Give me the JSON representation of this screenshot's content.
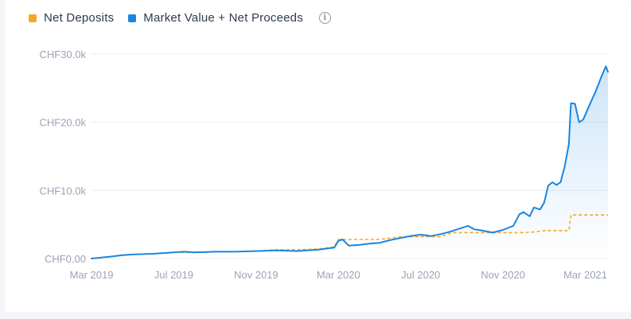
{
  "legend": {
    "net_deposits": "Net Deposits",
    "market_value": "Market Value + Net Proceeds",
    "info_icon": "info-icon"
  },
  "colors": {
    "net_deposits": "#f5a623",
    "market_value": "#1a86e0",
    "grid": "#e8ecf1",
    "tick": "#9aa3b3"
  },
  "chart_data": {
    "type": "line",
    "y_tick_labels": [
      "CHF0.00",
      "CHF10.0k",
      "CHF20.0k",
      "CHF30.0k"
    ],
    "y_tick_values": [
      0,
      10000,
      20000,
      30000
    ],
    "x_tick_labels": [
      "Mar 2019",
      "Jul 2019",
      "Nov 2019",
      "Mar 2020",
      "Jul 2020",
      "Nov 2020",
      "Mar 2021"
    ],
    "x_tick_values": [
      3,
      7,
      11,
      15,
      19,
      23,
      27
    ],
    "x_range": [
      3,
      28.1
    ],
    "ylim": [
      0,
      30000
    ],
    "grid": true,
    "legend_position": "top-left",
    "series": [
      {
        "name": "Market Value + Net Proceeds",
        "style": "solid",
        "area_fill": true,
        "points": [
          [
            3,
            0
          ],
          [
            4,
            300
          ],
          [
            4.5,
            500
          ],
          [
            5,
            600
          ],
          [
            6,
            700
          ],
          [
            7,
            900
          ],
          [
            7.5,
            1000
          ],
          [
            8,
            900
          ],
          [
            9,
            1000
          ],
          [
            10,
            1000
          ],
          [
            11,
            1100
          ],
          [
            12,
            1200
          ],
          [
            13,
            1100
          ],
          [
            14,
            1300
          ],
          [
            14.8,
            1600
          ],
          [
            15,
            2600
          ],
          [
            15.2,
            2800
          ],
          [
            15.5,
            1900
          ],
          [
            16,
            2000
          ],
          [
            16.5,
            2200
          ],
          [
            17,
            2300
          ],
          [
            17.5,
            2700
          ],
          [
            18,
            3000
          ],
          [
            18.5,
            3300
          ],
          [
            19,
            3500
          ],
          [
            19.5,
            3300
          ],
          [
            20,
            3600
          ],
          [
            20.5,
            4000
          ],
          [
            21,
            4500
          ],
          [
            21.3,
            4800
          ],
          [
            21.6,
            4300
          ],
          [
            22,
            4100
          ],
          [
            22.5,
            3800
          ],
          [
            23,
            4200
          ],
          [
            23.5,
            4800
          ],
          [
            23.8,
            6500
          ],
          [
            24,
            6800
          ],
          [
            24.3,
            6200
          ],
          [
            24.5,
            7500
          ],
          [
            24.8,
            7200
          ],
          [
            25,
            8200
          ],
          [
            25.2,
            10700
          ],
          [
            25.4,
            11200
          ],
          [
            25.6,
            10800
          ],
          [
            25.8,
            11200
          ],
          [
            26,
            13500
          ],
          [
            26.2,
            16800
          ],
          [
            26.3,
            22800
          ],
          [
            26.5,
            22700
          ],
          [
            26.7,
            20000
          ],
          [
            26.9,
            20400
          ],
          [
            27.2,
            22500
          ],
          [
            27.5,
            24500
          ],
          [
            27.8,
            26800
          ],
          [
            28,
            28200
          ],
          [
            28.1,
            27400
          ]
        ]
      },
      {
        "name": "Net Deposits",
        "style": "dashed",
        "area_fill": false,
        "points": [
          [
            3,
            0
          ],
          [
            4,
            300
          ],
          [
            4.5,
            500
          ],
          [
            5,
            600
          ],
          [
            6,
            700
          ],
          [
            7,
            900
          ],
          [
            8,
            900
          ],
          [
            9,
            1000
          ],
          [
            10,
            1000
          ],
          [
            11,
            1100
          ],
          [
            12,
            1300
          ],
          [
            13,
            1300
          ],
          [
            14,
            1400
          ],
          [
            14.8,
            1700
          ],
          [
            15,
            2800
          ],
          [
            17,
            2800
          ],
          [
            18,
            3200
          ],
          [
            20,
            3200
          ],
          [
            20.5,
            3800
          ],
          [
            24,
            3800
          ],
          [
            24.5,
            3900
          ],
          [
            25,
            4100
          ],
          [
            26.2,
            4100
          ],
          [
            26.3,
            6400
          ],
          [
            28.1,
            6400
          ]
        ]
      }
    ]
  }
}
